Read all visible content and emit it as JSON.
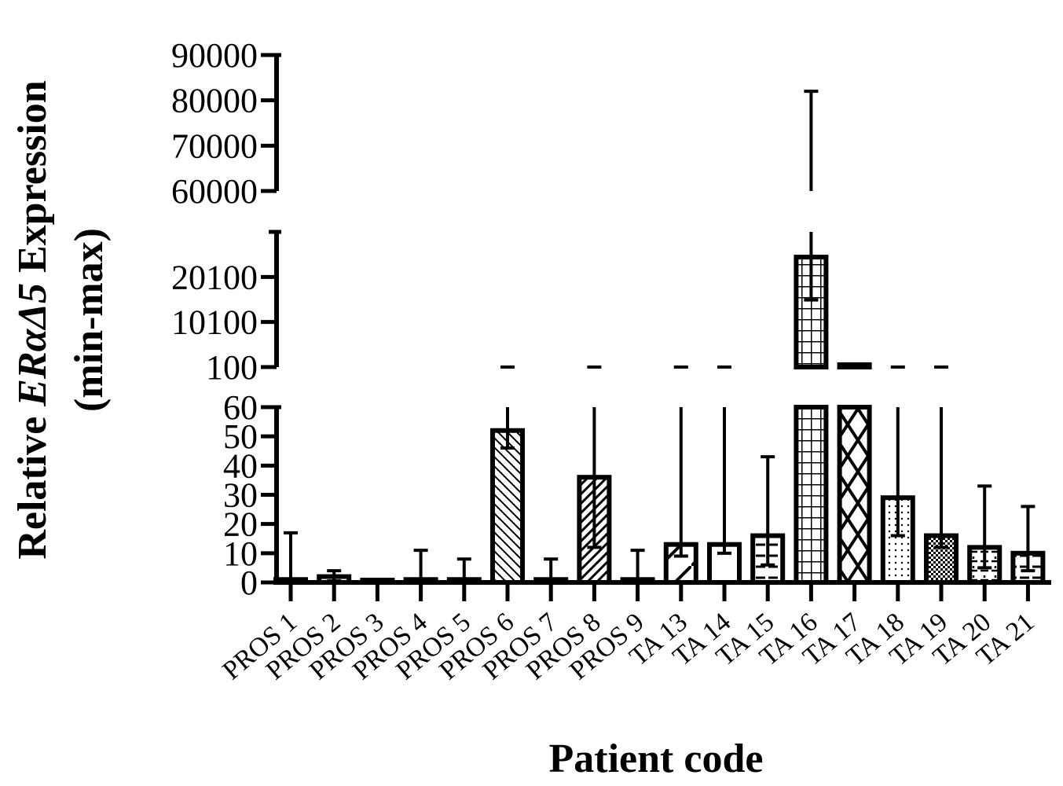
{
  "chart_data": {
    "type": "bar",
    "xlabel": "Patient code",
    "ylabel": {
      "prefix": "Relative ",
      "italic": "ERαΔ5",
      "suffix": " Expression",
      "line2": "(min-max)"
    },
    "broken_y_axis": true,
    "y_segments": [
      {
        "range": [
          0,
          60
        ],
        "ticks": [
          0,
          10,
          20,
          30,
          40,
          50,
          60
        ],
        "tick_labels": [
          "0",
          "10",
          "20",
          "30",
          "40",
          "50",
          "60"
        ]
      },
      {
        "range": [
          100,
          30100
        ],
        "ticks": [
          100,
          10100,
          20100
        ],
        "tick_labels": [
          "100",
          "10100",
          "20100"
        ]
      },
      {
        "range": [
          60000,
          90000
        ],
        "ticks": [
          60000,
          70000,
          80000,
          90000
        ],
        "tick_labels": [
          "60000",
          "70000",
          "80000",
          "90000"
        ]
      }
    ],
    "categories": [
      "PROS 1",
      "PROS 2",
      "PROS 3",
      "PROS 4",
      "PROS 5",
      "PROS 6",
      "PROS 7",
      "PROS 8",
      "PROS 9",
      "TA 13",
      "TA 14",
      "TA 15",
      "TA 16",
      "TA 17",
      "TA 18",
      "TA 19",
      "TA 20",
      "TA 21"
    ],
    "values": [
      1,
      2,
      0.3,
      1,
      1,
      52,
      1,
      36,
      1,
      13,
      13,
      16,
      24500,
      300,
      29,
      16,
      12,
      10
    ],
    "error_min": [
      0,
      0.5,
      0,
      0,
      0,
      46,
      0,
      12,
      0,
      9,
      10,
      6,
      15000,
      60,
      16,
      12,
      5,
      4
    ],
    "error_max": [
      17,
      4,
      0.5,
      11,
      8,
      100,
      8,
      100,
      11,
      100,
      100,
      43,
      82000,
      500,
      100,
      100,
      33,
      26
    ],
    "patterns": [
      "none",
      "none",
      "none",
      "none",
      "none",
      "diagonal-back",
      "none",
      "diagonal-forward",
      "none",
      "single-diagonal",
      "none",
      "horizontal-dash",
      "grid",
      "crosshatch",
      "dots",
      "checker",
      "dash-grid",
      "horizontal-dash"
    ],
    "colors": {
      "bar_stroke": "#000000",
      "bar_fill": "#ffffff"
    }
  }
}
